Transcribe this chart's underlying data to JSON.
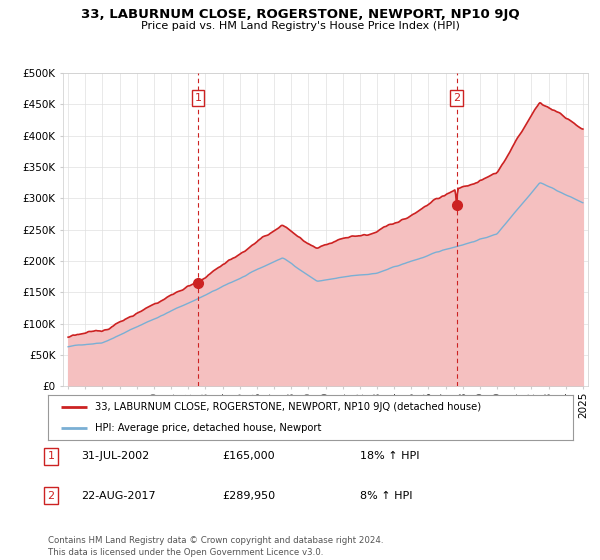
{
  "title": "33, LABURNUM CLOSE, ROGERSTONE, NEWPORT, NP10 9JQ",
  "subtitle": "Price paid vs. HM Land Registry's House Price Index (HPI)",
  "legend_line1": "33, LABURNUM CLOSE, ROGERSTONE, NEWPORT, NP10 9JQ (detached house)",
  "legend_line2": "HPI: Average price, detached house, Newport",
  "annotation1_label": "1",
  "annotation1_date": "31-JUL-2002",
  "annotation1_price": "£165,000",
  "annotation1_hpi": "18% ↑ HPI",
  "annotation2_label": "2",
  "annotation2_date": "22-AUG-2017",
  "annotation2_price": "£289,950",
  "annotation2_hpi": "8% ↑ HPI",
  "footnote": "Contains HM Land Registry data © Crown copyright and database right 2024.\nThis data is licensed under the Open Government Licence v3.0.",
  "hpi_color": "#7aafd4",
  "hpi_fill_color": "#c5ddf0",
  "sale_color": "#cc2222",
  "sale_fill_color": "#f5c0c0",
  "vline_color": "#cc2222",
  "background_color": "#ffffff",
  "ylim": [
    0,
    500000
  ],
  "yticks": [
    0,
    50000,
    100000,
    150000,
    200000,
    250000,
    300000,
    350000,
    400000,
    450000,
    500000
  ],
  "sale1_x": 2002.58,
  "sale1_y": 165000,
  "sale2_x": 2017.64,
  "sale2_y": 289950,
  "xmin": 1995,
  "xmax": 2025
}
